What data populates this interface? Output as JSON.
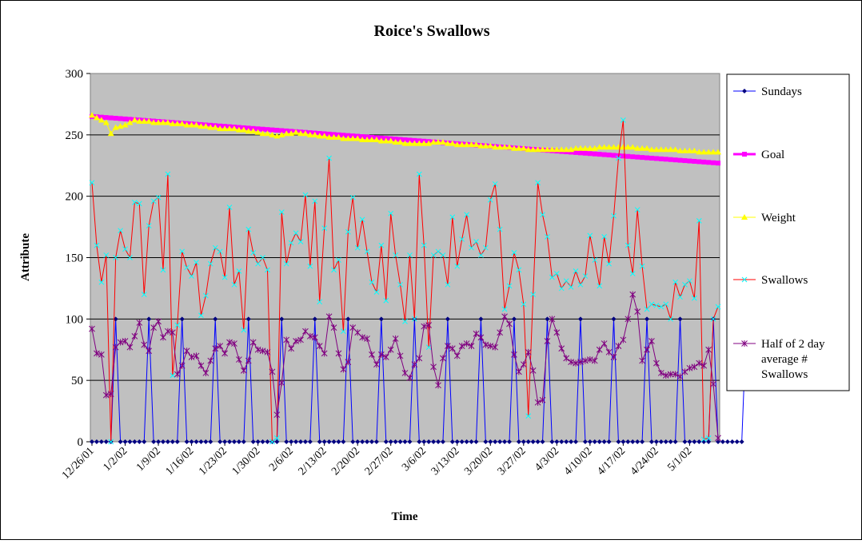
{
  "chart_data": {
    "type": "line",
    "title": "Roice's Swallows",
    "xlabel": "Time",
    "ylabel": "Attribute",
    "ylim": [
      0,
      300
    ],
    "y_ticks": [
      0,
      50,
      100,
      150,
      200,
      250,
      300
    ],
    "grid": true,
    "legend_position": "right",
    "plot_background": "#c0c0c0",
    "x_tick_labels": [
      "12/26/01",
      "1/2/02",
      "1/9/02",
      "1/16/02",
      "1/23/02",
      "1/30/02",
      "2/6/02",
      "2/13/02",
      "2/20/02",
      "2/27/02",
      "3/6/02",
      "3/13/02",
      "3/20/02",
      "3/27/02",
      "4/3/02",
      "4/10/02",
      "4/17/02",
      "4/24/02",
      "5/1/02"
    ],
    "x_start": "12/26/01",
    "num_days": 133,
    "series": [
      {
        "name": "Sundays",
        "color": "#000080",
        "marker": "diamond",
        "values": [
          0,
          0,
          0,
          0,
          0,
          100,
          0,
          0,
          0,
          0,
          0,
          0,
          100,
          0,
          0,
          0,
          0,
          0,
          0,
          100,
          0,
          0,
          0,
          0,
          0,
          0,
          100,
          0,
          0,
          0,
          0,
          0,
          0,
          100,
          0,
          0,
          0,
          0,
          0,
          0,
          100,
          0,
          0,
          0,
          0,
          0,
          0,
          100,
          0,
          0,
          0,
          0,
          0,
          0,
          100,
          0,
          0,
          0,
          0,
          0,
          0,
          100,
          0,
          0,
          0,
          0,
          0,
          0,
          100,
          0,
          0,
          0,
          0,
          0,
          0,
          100,
          0,
          0,
          0,
          0,
          0,
          0,
          100,
          0,
          0,
          0,
          0,
          0,
          0,
          100,
          0,
          0,
          0,
          0,
          0,
          0,
          100,
          0,
          0,
          0,
          0,
          0,
          0,
          100,
          0,
          0,
          0,
          0,
          0,
          0,
          100,
          0,
          0,
          0,
          0,
          0,
          0,
          100,
          0,
          0,
          0,
          0,
          0,
          0,
          100,
          0,
          0,
          0,
          0,
          0,
          0,
          100,
          0,
          0,
          0,
          0,
          0,
          0,
          100
        ]
      },
      {
        "name": "Goal",
        "color": "#ff00ff",
        "marker": "square",
        "start": 265,
        "end": 227
      },
      {
        "name": "Weight",
        "color": "#ffff00",
        "marker": "triangle",
        "values": [
          266,
          264,
          262,
          260,
          251,
          256,
          257,
          258,
          260,
          262,
          261,
          261,
          261,
          260,
          260,
          260,
          260,
          259,
          259,
          259,
          258,
          258,
          258,
          257,
          257,
          256,
          256,
          255,
          255,
          255,
          255,
          254,
          254,
          253,
          253,
          252,
          251,
          251,
          250,
          249,
          250,
          251,
          251,
          252,
          251,
          251,
          250,
          250,
          249,
          249,
          248,
          248,
          248,
          247,
          247,
          247,
          247,
          246,
          246,
          246,
          246,
          245,
          245,
          245,
          244,
          244,
          243,
          243,
          243,
          243,
          243,
          243,
          244,
          244,
          244,
          243,
          243,
          242,
          242,
          242,
          242,
          242,
          241,
          241,
          241,
          240,
          240,
          240,
          240,
          239,
          239,
          239,
          238,
          238,
          238,
          238,
          238,
          238,
          238,
          238,
          238,
          238,
          239,
          239,
          239,
          239,
          239,
          240,
          240,
          240,
          240,
          240,
          240,
          240,
          240,
          239,
          239,
          239,
          238,
          238,
          238,
          238,
          238,
          238,
          237,
          237,
          237,
          237,
          236,
          236,
          236,
          236,
          236
        ]
      },
      {
        "name": "Swallows",
        "color": "#00ffff",
        "marker": "x",
        "values": [
          211,
          160,
          130,
          152,
          0,
          150,
          172,
          157,
          150,
          195,
          194,
          120,
          176,
          196,
          199,
          140,
          218,
          54,
          95,
          155,
          142,
          135,
          146,
          103,
          119,
          145,
          158,
          155,
          134,
          191,
          128,
          139,
          91,
          173,
          154,
          145,
          150,
          140,
          0,
          3,
          187,
          145,
          162,
          170,
          163,
          201,
          143,
          196,
          114,
          174,
          231,
          140,
          148,
          90,
          171,
          199,
          158,
          181,
          155,
          130,
          122,
          160,
          115,
          186,
          152,
          128,
          98,
          152,
          100,
          218,
          160,
          77,
          152,
          155,
          152,
          128,
          183,
          143,
          165,
          185,
          158,
          163,
          152,
          158,
          197,
          210,
          173,
          108,
          127,
          154,
          140,
          112,
          21,
          120,
          211,
          185,
          167,
          134,
          137,
          125,
          131,
          126,
          139,
          128,
          135,
          168,
          148,
          127,
          167,
          145,
          184,
          231,
          262,
          160,
          137,
          189,
          143,
          108,
          112,
          111,
          110,
          112,
          100,
          130,
          118,
          128,
          131,
          117,
          180,
          2,
          3,
          100,
          110
        ]
      },
      {
        "name": "Half of 2 day average # Swallows",
        "color": "#800080",
        "marker": "star",
        "values": [
          92,
          72,
          71,
          38,
          39,
          77,
          81,
          82,
          77,
          86,
          97,
          79,
          74,
          93,
          98,
          85,
          90,
          89,
          55,
          62,
          74,
          69,
          70,
          62,
          56,
          66,
          76,
          78,
          72,
          81,
          80,
          67,
          58,
          66,
          81,
          75,
          74,
          73,
          57,
          22,
          48,
          83,
          76,
          82,
          83,
          90,
          86,
          85,
          78,
          72,
          102,
          93,
          72,
          59,
          65,
          93,
          89,
          85,
          84,
          71,
          63,
          71,
          69,
          75,
          84,
          70,
          56,
          52,
          63,
          68,
          94,
          95,
          61,
          46,
          68,
          78,
          76,
          70,
          78,
          80,
          78,
          88,
          85,
          79,
          78,
          77,
          89,
          102,
          96,
          71,
          57,
          63,
          73,
          58,
          32,
          34,
          82,
          100,
          89,
          76,
          68,
          65,
          64,
          65,
          66,
          67,
          66,
          75,
          80,
          73,
          69,
          78,
          83,
          100,
          120,
          106,
          66,
          75,
          82,
          64,
          56,
          54,
          55,
          55,
          53,
          57,
          60,
          61,
          64,
          62,
          75,
          47,
          3
        ]
      }
    ]
  }
}
